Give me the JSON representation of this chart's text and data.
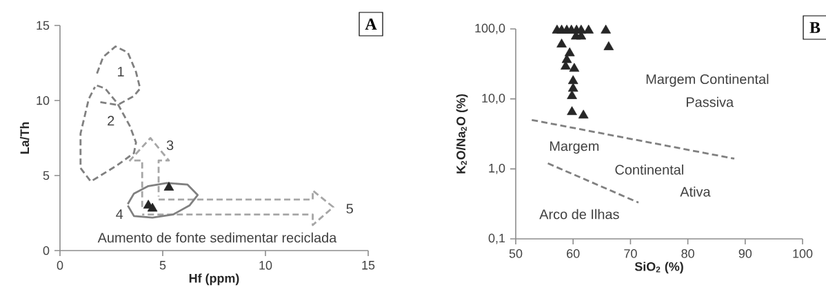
{
  "chart_data": [
    {
      "type": "scatter",
      "title": "A",
      "xlabel": "Hf (ppm)",
      "ylabel": "La/Th",
      "xlim": [
        0,
        15
      ],
      "ylim": [
        0,
        15
      ],
      "xticks": [
        0,
        5,
        10,
        15
      ],
      "yticks": [
        0,
        5,
        10,
        15
      ],
      "marker": "triangle",
      "series": [
        {
          "type": "line",
          "color": "#808080",
          "line_style": "dashed",
          "marker": "none",
          "x": [
            1.8,
            2.1,
            2.7,
            3.3,
            3.7,
            3.9,
            3.6,
            2.8,
            1.9
          ],
          "values": [
            11.8,
            12.9,
            13.6,
            13.2,
            11.9,
            10.8,
            10.3,
            9.7,
            9.9
          ]
        },
        {
          "type": "line",
          "color": "#808080",
          "line_style": "dashed",
          "marker": "none",
          "x": [
            1.8,
            2.2,
            2.8,
            3.4,
            3.7,
            3.6,
            2.8,
            1.5,
            1.0,
            1.0,
            1.4,
            1.7
          ],
          "values": [
            11.0,
            10.8,
            9.8,
            8.3,
            7.2,
            6.5,
            5.7,
            4.6,
            5.5,
            7.8,
            10.1,
            10.9
          ]
        },
        {
          "type": "line",
          "color": "#a6a6a6",
          "line_style": "dashed",
          "marker": "none",
          "x": [
            4.0,
            4.0,
            3.4,
            4.4,
            5.3,
            4.8,
            4.8
          ],
          "values": [
            2.9,
            6.0,
            6.0,
            7.5,
            6.0,
            6.0,
            3.6
          ]
        },
        {
          "type": "line",
          "color": "#a6a6a6",
          "line_style": "dashed",
          "marker": "none",
          "x": [
            4.8,
            12.3,
            12.3,
            13.3,
            12.3,
            12.3,
            4.0
          ],
          "values": [
            3.4,
            3.4,
            4.0,
            2.9,
            1.7,
            2.4,
            2.4
          ]
        },
        {
          "type": "line",
          "color": "#808080",
          "line_style": "solid",
          "marker": "none",
          "x": [
            3.3,
            3.6,
            4.3,
            5.2,
            6.2,
            6.7,
            6.3,
            5.5,
            4.5,
            3.6,
            3.3
          ],
          "values": [
            3.1,
            3.8,
            4.3,
            4.5,
            4.4,
            3.7,
            3.0,
            2.4,
            2.2,
            2.3,
            3.0
          ]
        },
        {
          "color": "#262626",
          "x": [
            4.3,
            4.5,
            5.3
          ],
          "values": [
            3.0,
            2.8,
            4.2
          ]
        }
      ],
      "annotations": [
        "1",
        "2",
        "3",
        "4",
        "5",
        "Aumento  de fonte sedimentar reciclada"
      ]
    },
    {
      "type": "scatter",
      "title": "B",
      "xlabel": "SiO$_{2}$ (%)",
      "ylabel": "K$_{2}$O/Na$_{2}$O (%)",
      "log": "y",
      "xlim": [
        50,
        100
      ],
      "ylim": [
        0.1,
        100
      ],
      "xticks": [
        50,
        60,
        70,
        80,
        90,
        100
      ],
      "yticks": [
        {
          "value": 0.1,
          "label": "0,1"
        },
        {
          "value": 1,
          "label": "1,0"
        },
        {
          "value": 10,
          "label": "10,0"
        },
        {
          "value": 100,
          "label": "100,0"
        }
      ],
      "marker": "triangle",
      "series": [
        {
          "type": "line",
          "color": "#808080",
          "line_style": "dashed",
          "marker": "none",
          "x": [
            52.8,
            88.1
          ],
          "values": [
            5.0,
            1.4
          ]
        },
        {
          "type": "line",
          "color": "#808080",
          "line_style": "dashed",
          "marker": "none",
          "x": [
            55.6,
            71.4
          ],
          "values": [
            1.2,
            0.33
          ]
        },
        {
          "color": "#262626",
          "x": [
            57.2,
            58,
            58.9,
            59.7,
            60.6,
            61.4,
            62.7,
            65.7,
            60.5,
            61.4,
            58,
            66.2,
            59.4,
            58.9,
            58.7,
            60.2,
            60,
            60,
            59.8,
            59.8,
            61.8
          ],
          "values": [
            95,
            95,
            95,
            95,
            95,
            95,
            95,
            95,
            78,
            78,
            60,
            55,
            45,
            36,
            29,
            27,
            18,
            14,
            11,
            6.5,
            5.8
          ]
        }
      ],
      "annotations": [
        "Margem Continental",
        "Passiva",
        "Margem",
        "Continental",
        "Ativa",
        "Arco de Ilhas"
      ]
    }
  ]
}
